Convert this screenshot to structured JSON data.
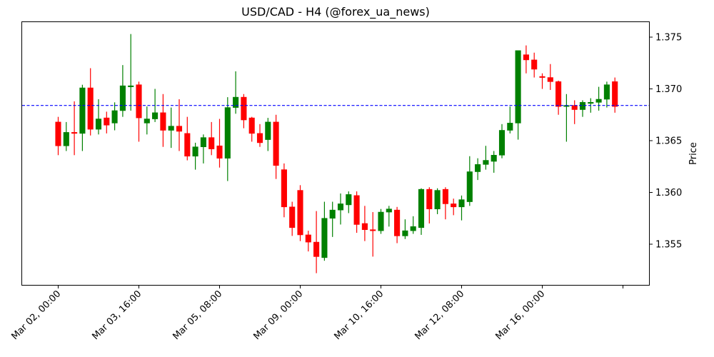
{
  "chart_data": {
    "type": "candlestick",
    "title": "USD/CAD - H4 (@forex_ua_news)",
    "xlabel": "",
    "ylabel": "Price",
    "ylim": [
      1.3512,
      1.3765
    ],
    "yaxis_position": "right",
    "yticks": [
      1.355,
      1.36,
      1.365,
      1.37,
      1.375
    ],
    "ytick_labels": [
      "1.355",
      "1.360",
      "1.365",
      "1.370",
      "1.375"
    ],
    "xtick_labels": [
      "Mar 02, 00:00",
      "Mar 03, 16:00",
      "Mar 05, 08:00",
      "Mar 09, 00:00",
      "Mar 10, 16:00",
      "Mar 12, 08:00",
      "Mar 16, 00:00",
      ""
    ],
    "xtick_indices": [
      0,
      10,
      20,
      30,
      40,
      50,
      60,
      70
    ],
    "grid": false,
    "legend": null,
    "colors": {
      "up": "#008000",
      "down": "#ff0000",
      "hline": "#0000ff"
    },
    "hline": {
      "value": 1.3684,
      "style": "dashed",
      "color": "#0000ff"
    },
    "timeframe": "H4",
    "candles": [
      {
        "o": 1.3668,
        "h": 1.3673,
        "l": 1.3636,
        "c": 1.3645
      },
      {
        "o": 1.3645,
        "h": 1.3668,
        "l": 1.364,
        "c": 1.3658
      },
      {
        "o": 1.3658,
        "h": 1.3688,
        "l": 1.3636,
        "c": 1.3657
      },
      {
        "o": 1.3657,
        "h": 1.3704,
        "l": 1.364,
        "c": 1.3701
      },
      {
        "o": 1.3701,
        "h": 1.372,
        "l": 1.3655,
        "c": 1.3661
      },
      {
        "o": 1.3661,
        "h": 1.369,
        "l": 1.3656,
        "c": 1.3671
      },
      {
        "o": 1.3672,
        "h": 1.3678,
        "l": 1.3657,
        "c": 1.3665
      },
      {
        "o": 1.3667,
        "h": 1.3687,
        "l": 1.366,
        "c": 1.3679
      },
      {
        "o": 1.3679,
        "h": 1.3723,
        "l": 1.3673,
        "c": 1.3703
      },
      {
        "o": 1.3702,
        "h": 1.3753,
        "l": 1.3679,
        "c": 1.3703
      },
      {
        "o": 1.3704,
        "h": 1.3707,
        "l": 1.3649,
        "c": 1.3672
      },
      {
        "o": 1.3667,
        "h": 1.3683,
        "l": 1.3656,
        "c": 1.3671
      },
      {
        "o": 1.3671,
        "h": 1.37,
        "l": 1.3668,
        "c": 1.3677
      },
      {
        "o": 1.3677,
        "h": 1.3695,
        "l": 1.3644,
        "c": 1.366
      },
      {
        "o": 1.366,
        "h": 1.3682,
        "l": 1.3643,
        "c": 1.3664
      },
      {
        "o": 1.3664,
        "h": 1.369,
        "l": 1.364,
        "c": 1.3659
      },
      {
        "o": 1.3657,
        "h": 1.3673,
        "l": 1.3631,
        "c": 1.3635
      },
      {
        "o": 1.3635,
        "h": 1.3648,
        "l": 1.3622,
        "c": 1.3644
      },
      {
        "o": 1.3644,
        "h": 1.3656,
        "l": 1.3628,
        "c": 1.3653
      },
      {
        "o": 1.3653,
        "h": 1.3668,
        "l": 1.3636,
        "c": 1.3642
      },
      {
        "o": 1.3645,
        "h": 1.3671,
        "l": 1.3624,
        "c": 1.3633
      },
      {
        "o": 1.3633,
        "h": 1.3692,
        "l": 1.3611,
        "c": 1.3682
      },
      {
        "o": 1.3682,
        "h": 1.3717,
        "l": 1.3676,
        "c": 1.3692
      },
      {
        "o": 1.3692,
        "h": 1.3695,
        "l": 1.3662,
        "c": 1.367
      },
      {
        "o": 1.3672,
        "h": 1.3673,
        "l": 1.3649,
        "c": 1.3657
      },
      {
        "o": 1.3657,
        "h": 1.3666,
        "l": 1.3644,
        "c": 1.3648
      },
      {
        "o": 1.3651,
        "h": 1.3672,
        "l": 1.364,
        "c": 1.3668
      },
      {
        "o": 1.3668,
        "h": 1.3675,
        "l": 1.3613,
        "c": 1.3626
      },
      {
        "o": 1.3622,
        "h": 1.3628,
        "l": 1.3576,
        "c": 1.3586
      },
      {
        "o": 1.3586,
        "h": 1.3591,
        "l": 1.3558,
        "c": 1.3566
      },
      {
        "o": 1.3602,
        "h": 1.3607,
        "l": 1.3553,
        "c": 1.3559
      },
      {
        "o": 1.3559,
        "h": 1.3563,
        "l": 1.3543,
        "c": 1.3552
      },
      {
        "o": 1.3552,
        "h": 1.3582,
        "l": 1.3522,
        "c": 1.3538
      },
      {
        "o": 1.3537,
        "h": 1.3591,
        "l": 1.3534,
        "c": 1.3575
      },
      {
        "o": 1.3575,
        "h": 1.3591,
        "l": 1.3557,
        "c": 1.3583
      },
      {
        "o": 1.3583,
        "h": 1.3599,
        "l": 1.3569,
        "c": 1.3589
      },
      {
        "o": 1.3588,
        "h": 1.3601,
        "l": 1.358,
        "c": 1.3598
      },
      {
        "o": 1.3597,
        "h": 1.3601,
        "l": 1.3561,
        "c": 1.3569
      },
      {
        "o": 1.357,
        "h": 1.3587,
        "l": 1.3553,
        "c": 1.3564
      },
      {
        "o": 1.3564,
        "h": 1.3581,
        "l": 1.3538,
        "c": 1.3563
      },
      {
        "o": 1.3563,
        "h": 1.3584,
        "l": 1.356,
        "c": 1.3581
      },
      {
        "o": 1.3581,
        "h": 1.3587,
        "l": 1.3567,
        "c": 1.3584
      },
      {
        "o": 1.3583,
        "h": 1.3586,
        "l": 1.3551,
        "c": 1.3558
      },
      {
        "o": 1.3558,
        "h": 1.3574,
        "l": 1.3555,
        "c": 1.3563
      },
      {
        "o": 1.3563,
        "h": 1.3577,
        "l": 1.356,
        "c": 1.3567
      },
      {
        "o": 1.3566,
        "h": 1.3604,
        "l": 1.3559,
        "c": 1.3603
      },
      {
        "o": 1.3603,
        "h": 1.3605,
        "l": 1.357,
        "c": 1.3584
      },
      {
        "o": 1.3584,
        "h": 1.3604,
        "l": 1.3579,
        "c": 1.3602
      },
      {
        "o": 1.3603,
        "h": 1.3605,
        "l": 1.3574,
        "c": 1.3589
      },
      {
        "o": 1.3589,
        "h": 1.3594,
        "l": 1.3578,
        "c": 1.3586
      },
      {
        "o": 1.3586,
        "h": 1.3597,
        "l": 1.3573,
        "c": 1.3593
      },
      {
        "o": 1.3591,
        "h": 1.3635,
        "l": 1.3587,
        "c": 1.362
      },
      {
        "o": 1.362,
        "h": 1.3633,
        "l": 1.3612,
        "c": 1.3627
      },
      {
        "o": 1.3627,
        "h": 1.3645,
        "l": 1.3622,
        "c": 1.3631
      },
      {
        "o": 1.363,
        "h": 1.364,
        "l": 1.3619,
        "c": 1.3636
      },
      {
        "o": 1.3636,
        "h": 1.3666,
        "l": 1.3633,
        "c": 1.366
      },
      {
        "o": 1.366,
        "h": 1.3683,
        "l": 1.3657,
        "c": 1.3667
      },
      {
        "o": 1.3667,
        "h": 1.3737,
        "l": 1.3651,
        "c": 1.3737
      },
      {
        "o": 1.3733,
        "h": 1.3742,
        "l": 1.3715,
        "c": 1.3728
      },
      {
        "o": 1.3728,
        "h": 1.3735,
        "l": 1.3711,
        "c": 1.3719
      },
      {
        "o": 1.3712,
        "h": 1.3715,
        "l": 1.37,
        "c": 1.3711
      },
      {
        "o": 1.3711,
        "h": 1.3724,
        "l": 1.3699,
        "c": 1.3707
      },
      {
        "o": 1.3707,
        "h": 1.3708,
        "l": 1.3675,
        "c": 1.3683
      },
      {
        "o": 1.3683,
        "h": 1.3695,
        "l": 1.3649,
        "c": 1.3684
      },
      {
        "o": 1.3684,
        "h": 1.3689,
        "l": 1.3666,
        "c": 1.368
      },
      {
        "o": 1.368,
        "h": 1.3689,
        "l": 1.3673,
        "c": 1.3687
      },
      {
        "o": 1.3686,
        "h": 1.3691,
        "l": 1.3677,
        "c": 1.3687
      },
      {
        "o": 1.3687,
        "h": 1.3702,
        "l": 1.3679,
        "c": 1.369
      },
      {
        "o": 1.369,
        "h": 1.3707,
        "l": 1.3682,
        "c": 1.3704
      },
      {
        "o": 1.3707,
        "h": 1.3711,
        "l": 1.3677,
        "c": 1.3683
      }
    ]
  }
}
